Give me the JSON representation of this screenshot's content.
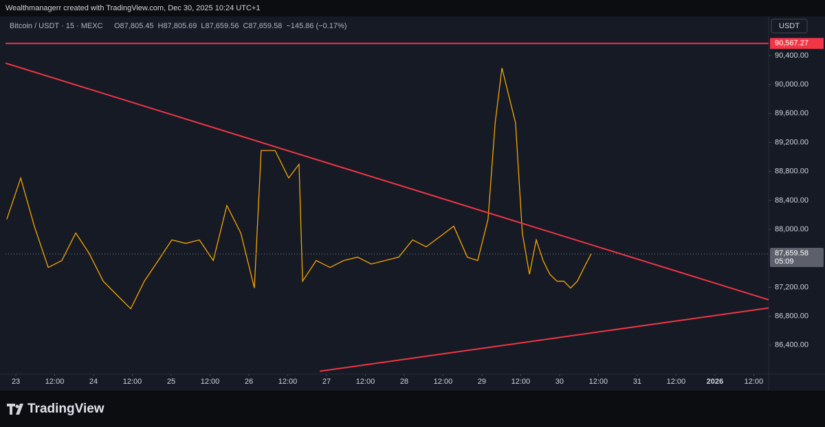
{
  "attribution": "Wealthmanagerr created with TradingView.com, Dec 30, 2025 10:24 UTC+1",
  "brand": "TradingView",
  "chart_data": {
    "type": "line",
    "symbol": "Bitcoin / USDT · 15 · MEXC",
    "legend_values": [
      "O87,805.45",
      "H87,805.69",
      "L87,659.56",
      "C87,659.58",
      "−145.86 (−0.17%)"
    ],
    "currency": "USDT",
    "x": [
      -2.8,
      1.5,
      5.7,
      10.0,
      14.2,
      18.5,
      22.7,
      27.0,
      31.2,
      35.5,
      39.7,
      44.0,
      48.2,
      52.5,
      56.7,
      61.0,
      65.2,
      69.5,
      73.7,
      75.8,
      80.1,
      84.3,
      87.5,
      88.6,
      92.8,
      97.1,
      101.3,
      105.6,
      109.8,
      114.1,
      118.3,
      122.6,
      126.8,
      131.1,
      135.3,
      139.5,
      142.7,
      145.9,
      148.1,
      150.2,
      152.3,
      154.4,
      156.5,
      158.7,
      160.8,
      162.9,
      165.0,
      167.2,
      169.3,
      171.4,
      173.5,
      175.6,
      177.8
    ],
    "series": [
      {
        "color": "#f7a600",
        "values": [
          88139,
          88709,
          88044,
          87474,
          87569,
          87949,
          87664,
          87284,
          87094,
          86904,
          87284,
          87569,
          87854,
          87806,
          87854,
          87569,
          88329,
          87949,
          87189,
          89089,
          89089,
          88709,
          88899,
          87284,
          87569,
          87474,
          87569,
          87616,
          87521,
          87569,
          87616,
          87854,
          87759,
          87901,
          88044,
          87616,
          87569,
          88139,
          89469,
          90229,
          89849,
          89469,
          87949,
          87379,
          87854,
          87569,
          87379,
          87284,
          87284,
          87189,
          87284,
          87474,
          87664
        ]
      }
    ],
    "xlim": [
      -3.2,
      232.6
    ],
    "ylim": [
      86000,
      90940
    ],
    "xticks": [
      {
        "value": 0,
        "label": "23"
      },
      {
        "value": 12,
        "label": "12:00"
      },
      {
        "value": 24,
        "label": "24"
      },
      {
        "value": 36,
        "label": "12:00"
      },
      {
        "value": 48,
        "label": "25"
      },
      {
        "value": 60,
        "label": "12:00"
      },
      {
        "value": 72,
        "label": "26"
      },
      {
        "value": 84,
        "label": "12:00"
      },
      {
        "value": 96,
        "label": "27"
      },
      {
        "value": 108,
        "label": "12:00"
      },
      {
        "value": 120,
        "label": "28"
      },
      {
        "value": 132,
        "label": "12:00"
      },
      {
        "value": 144,
        "label": "29"
      },
      {
        "value": 156,
        "label": "12:00"
      },
      {
        "value": 168,
        "label": "30"
      },
      {
        "value": 180,
        "label": "12:00"
      },
      {
        "value": 192,
        "label": "31"
      },
      {
        "value": 204,
        "label": "12:00"
      },
      {
        "value": 216,
        "label": "2026"
      },
      {
        "value": 228,
        "label": "12:00"
      }
    ],
    "yticks": [
      {
        "value": 86400,
        "label": "86,400.00"
      },
      {
        "value": 86800,
        "label": "86,800.00"
      },
      {
        "value": 87200,
        "label": "87,200.00"
      },
      {
        "value": 88000,
        "label": "88,000.00"
      },
      {
        "value": 88400,
        "label": "88,400.00"
      },
      {
        "value": 88800,
        "label": "88,800.00"
      },
      {
        "value": 89200,
        "label": "89,200.00"
      },
      {
        "value": 89600,
        "label": "89,600.00"
      },
      {
        "value": 90000,
        "label": "90,000.00"
      },
      {
        "value": 90400,
        "label": "90,400.00"
      }
    ],
    "horizontal_line": {
      "value": 90567.27,
      "label": "90,567.27",
      "color": "#f23645"
    },
    "current_price": {
      "value": 87659.58,
      "label": "87,659.58"
    },
    "countdown": "05:09",
    "trendlines": [
      {
        "color": "#f23645",
        "x": [
          -3.2,
          232.6
        ],
        "y": [
          90296,
          87027
        ]
      },
      {
        "color": "#f23645",
        "x": [
          93.9,
          232.6
        ],
        "y": [
          86040,
          86914
        ]
      }
    ]
  }
}
